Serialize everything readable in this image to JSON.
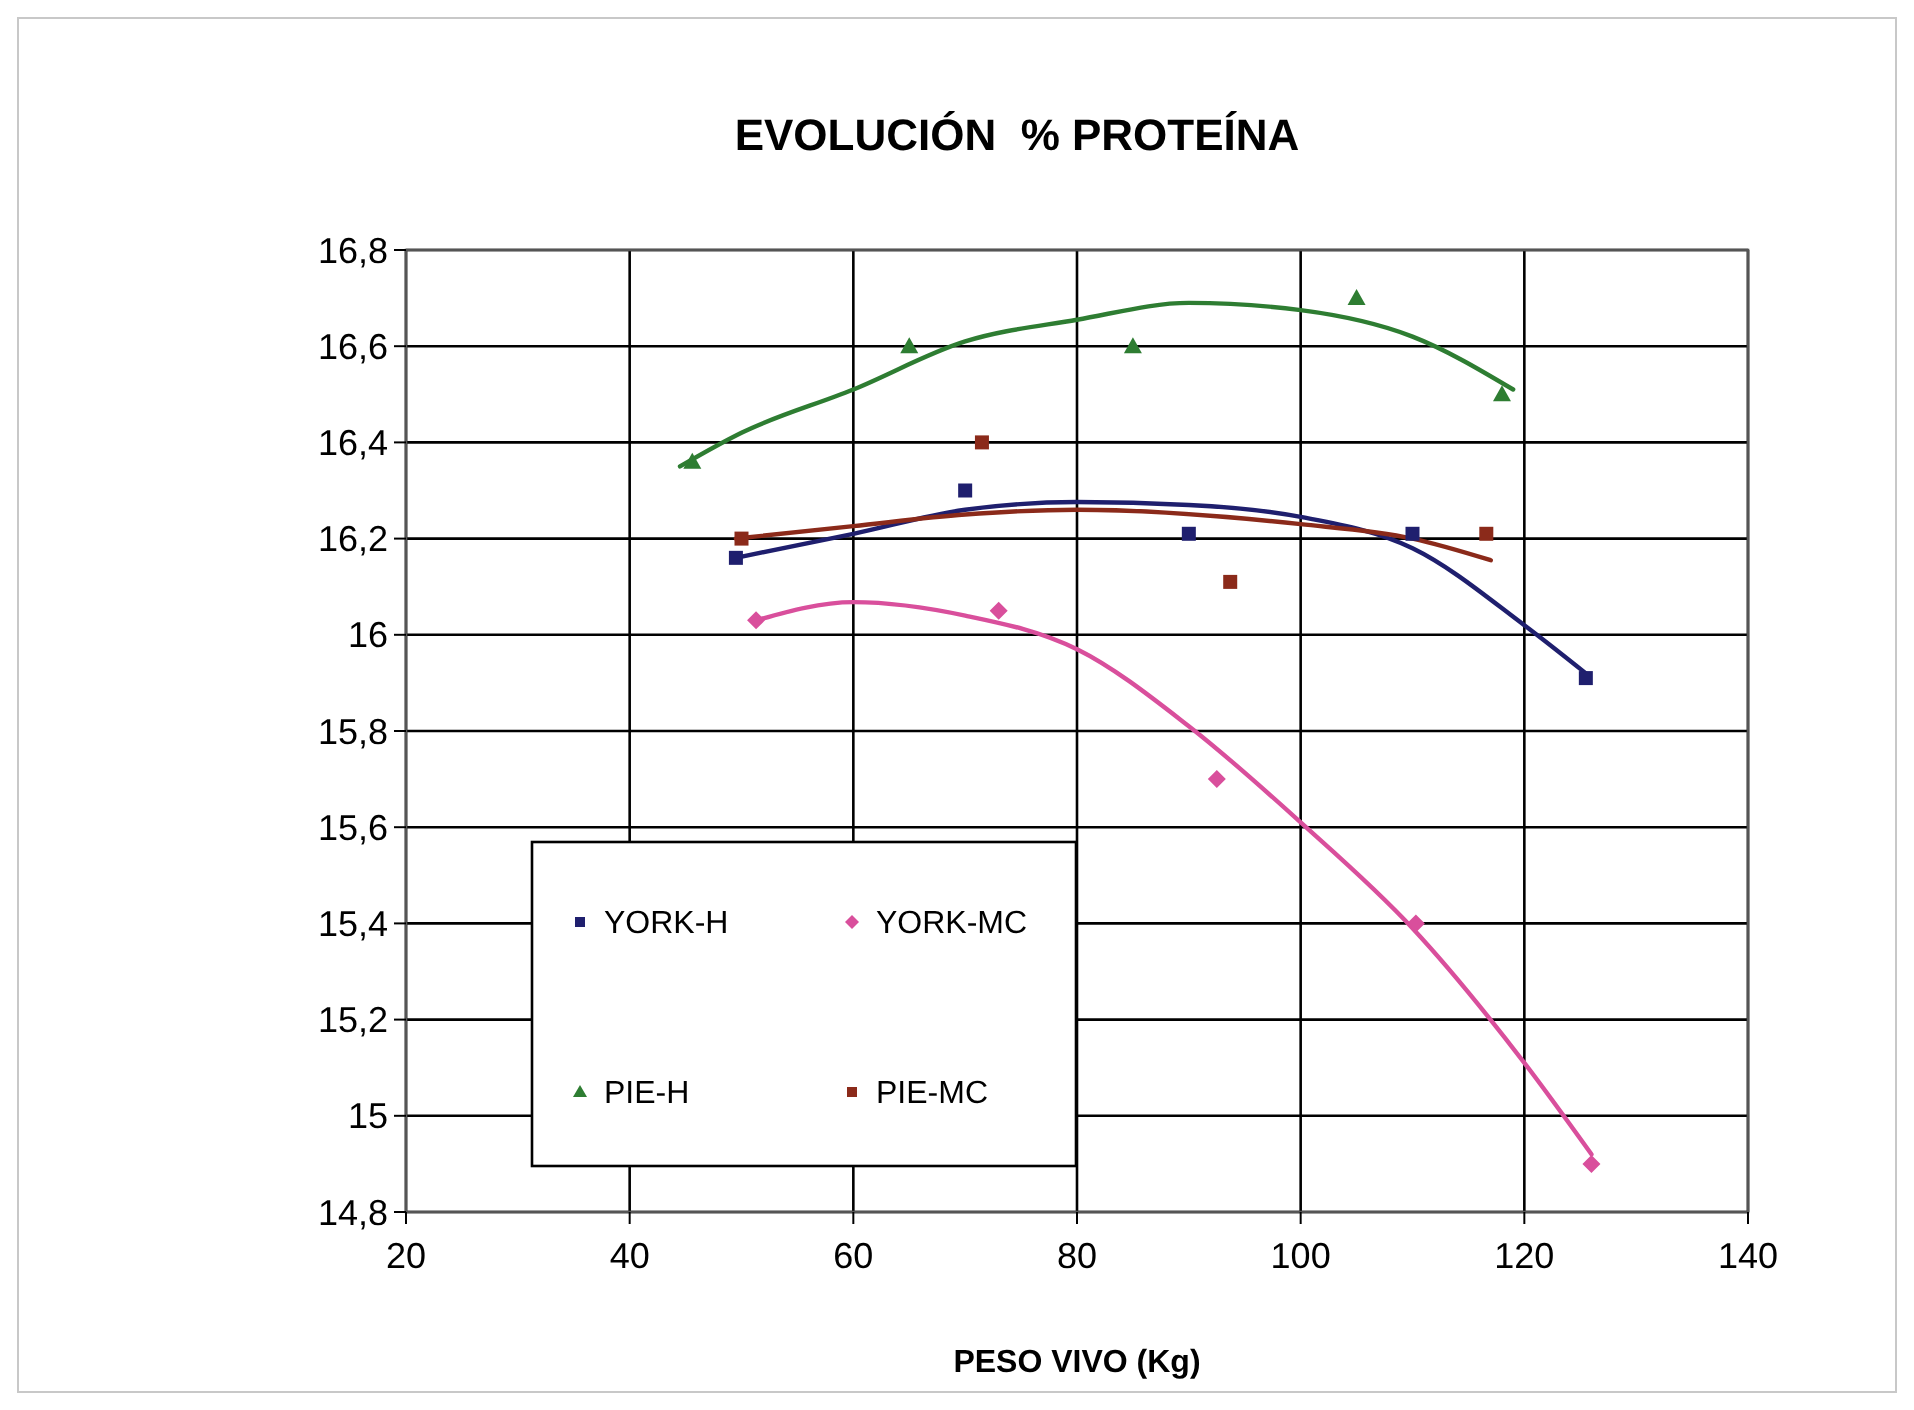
{
  "chart_data": {
    "type": "scatter",
    "title": "EVOLUCIÓN  % PROTEÍNA",
    "xlabel": "PESO VIVO (Kg)",
    "xlim": [
      20,
      140
    ],
    "xticks": [
      20,
      40,
      60,
      80,
      100,
      120,
      140
    ],
    "ylim": [
      14.8,
      16.8
    ],
    "yticks": [
      {
        "value": 14.8,
        "label": "14,8"
      },
      {
        "value": 15,
        "label": "15"
      },
      {
        "value": 15.2,
        "label": "15,2"
      },
      {
        "value": 15.4,
        "label": "15,4"
      },
      {
        "value": 15.6,
        "label": "15,6"
      },
      {
        "value": 15.8,
        "label": "15,8"
      },
      {
        "value": 16,
        "label": "16"
      },
      {
        "value": 16.2,
        "label": "16,2"
      },
      {
        "value": 16.4,
        "label": "16,4"
      },
      {
        "value": 16.6,
        "label": "16,6"
      },
      {
        "value": 16.8,
        "label": "16,8"
      }
    ],
    "grid": true,
    "legend": "bottom left",
    "series": [
      {
        "name": "YORK-H",
        "color": "#1f1f6e",
        "marker": "square",
        "x": [
          49.5,
          70,
          90,
          110,
          125.5
        ],
        "values": [
          16.16,
          16.3,
          16.21,
          16.21,
          15.91
        ]
      },
      {
        "name": "YORK-MC",
        "color": "#d94f9c",
        "marker": "diamond",
        "x": [
          51.3,
          73,
          92.5,
          110.3,
          126
        ],
        "values": [
          16.03,
          16.05,
          15.7,
          15.4,
          14.9
        ]
      },
      {
        "name": "PIE-H",
        "color": "#2e7d32",
        "marker": "triangle",
        "x": [
          45.6,
          65,
          85,
          105,
          118
        ],
        "values": [
          16.36,
          16.6,
          16.6,
          16.7,
          16.5
        ]
      },
      {
        "name": "PIE-MC",
        "color": "#8b2a1a",
        "marker": "square",
        "x": [
          50,
          71.5,
          93.7,
          116.6
        ],
        "values": [
          16.2,
          16.4,
          16.11,
          16.21
        ]
      },
      {
        "type": "line",
        "color": "#1f1f6e",
        "marker": "none",
        "x": [
          49.5,
          60,
          70,
          80,
          90,
          100,
          110,
          120,
          125.5
        ],
        "values": [
          16.16,
          16.21,
          16.26,
          16.276,
          16.27,
          16.245,
          16.18,
          16.02,
          15.92
        ]
      },
      {
        "type": "line",
        "color": "#d94f9c",
        "marker": "none",
        "x": [
          51.3,
          60,
          70,
          80,
          90,
          100,
          110,
          120,
          126
        ],
        "values": [
          16.03,
          16.068,
          16.04,
          15.97,
          15.81,
          15.61,
          15.39,
          15.11,
          14.92
        ]
      },
      {
        "type": "line",
        "color": "#2e7d32",
        "marker": "none",
        "x": [
          44.5,
          50,
          60,
          70,
          80,
          90,
          100,
          110,
          119
        ],
        "values": [
          16.35,
          16.42,
          16.51,
          16.61,
          16.655,
          16.69,
          16.675,
          16.62,
          16.51
        ]
      },
      {
        "type": "line",
        "color": "#8b2a1a",
        "marker": "none",
        "x": [
          49.5,
          60,
          70,
          80,
          100,
          110,
          117
        ],
        "values": [
          16.2,
          16.226,
          16.25,
          16.26,
          16.23,
          16.2,
          16.155
        ]
      }
    ]
  }
}
